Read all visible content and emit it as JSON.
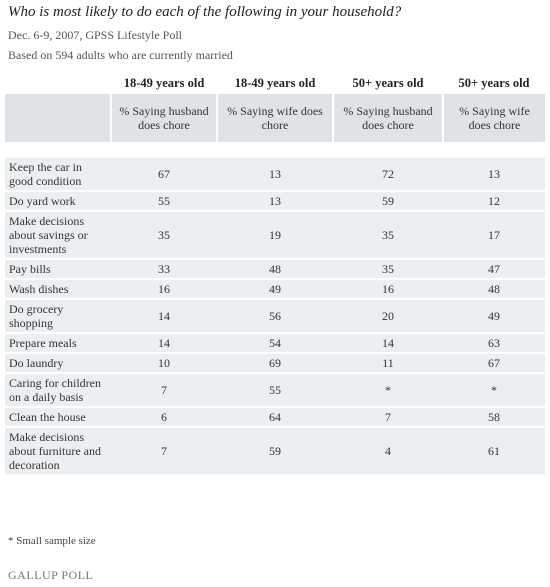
{
  "header": {
    "title": "Who is most likely to do each of the following in your household?",
    "date_line": "Dec. 6-9, 2007, GPSS Lifestyle Poll",
    "base_line": "Based on 594 adults who are currently married"
  },
  "table": {
    "columns": [
      {
        "group": "18-49 years old",
        "label": "% Saying husband does chore"
      },
      {
        "group": "18-49 years old",
        "label": "% Saying wife does chore"
      },
      {
        "group": "50+ years old",
        "label": "% Saying husband does chore"
      },
      {
        "group": "50+ years old",
        "label": "% Saying wife does chore"
      }
    ],
    "rows": [
      {
        "label": "Keep the car in good condition",
        "values": [
          67,
          13,
          72,
          13
        ]
      },
      {
        "label": "Do yard work",
        "values": [
          55,
          13,
          59,
          12
        ]
      },
      {
        "label": "Make decisions about savings or investments",
        "values": [
          35,
          19,
          35,
          17
        ]
      },
      {
        "label": "Pay bills",
        "values": [
          33,
          48,
          35,
          47
        ]
      },
      {
        "label": "Wash dishes",
        "values": [
          16,
          49,
          16,
          48
        ]
      },
      {
        "label": "Do grocery shopping",
        "values": [
          14,
          56,
          20,
          49
        ]
      },
      {
        "label": "Prepare meals",
        "values": [
          14,
          54,
          14,
          63
        ]
      },
      {
        "label": "Do laundry",
        "values": [
          10,
          69,
          11,
          67
        ]
      },
      {
        "label": "Caring for children on a daily basis",
        "values": [
          7,
          55,
          "*",
          "*"
        ]
      },
      {
        "label": "Clean the house",
        "values": [
          6,
          64,
          7,
          58
        ]
      },
      {
        "label": "Make decisions about furniture and decoration",
        "values": [
          7,
          59,
          4,
          61
        ]
      }
    ]
  },
  "footnote": "* Small sample size",
  "logo": "GALLUP POLL"
}
